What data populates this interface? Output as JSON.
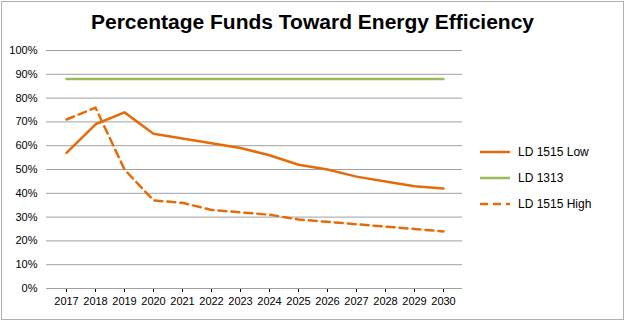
{
  "chart_data": {
    "type": "line",
    "title": "Percentage Funds Toward Energy Efficiency",
    "categories": [
      "2017",
      "2018",
      "2019",
      "2020",
      "2021",
      "2022",
      "2023",
      "2024",
      "2025",
      "2026",
      "2027",
      "2028",
      "2029",
      "2030"
    ],
    "series": [
      {
        "name": "LD 1515 Low",
        "color": "#E46C0A",
        "line_style": "solid",
        "values": [
          57,
          69,
          74,
          65,
          63,
          61,
          59,
          56,
          52,
          50,
          47,
          45,
          43,
          42
        ]
      },
      {
        "name": "LD 1313",
        "color": "#9BBB59",
        "line_style": "solid",
        "values": [
          88,
          88,
          88,
          88,
          88,
          88,
          88,
          88,
          88,
          88,
          88,
          88,
          88,
          88
        ]
      },
      {
        "name": "LD 1515 High",
        "color": "#E46C0A",
        "line_style": "dashed",
        "values": [
          71,
          76,
          50,
          37,
          36,
          33,
          32,
          31,
          29,
          28,
          27,
          26,
          25,
          24
        ]
      }
    ],
    "ylim": [
      0,
      100
    ],
    "yticks": [
      {
        "value": 0,
        "label": "0%"
      },
      {
        "value": 10,
        "label": "10%"
      },
      {
        "value": 20,
        "label": "20%"
      },
      {
        "value": 30,
        "label": "30%"
      },
      {
        "value": 40,
        "label": "40%"
      },
      {
        "value": 50,
        "label": "50%"
      },
      {
        "value": 60,
        "label": "60%"
      },
      {
        "value": 70,
        "label": "70%"
      },
      {
        "value": 80,
        "label": "80%"
      },
      {
        "value": 90,
        "label": "90%"
      },
      {
        "value": 100,
        "label": "100%"
      }
    ],
    "grid": true,
    "legend": "right"
  }
}
